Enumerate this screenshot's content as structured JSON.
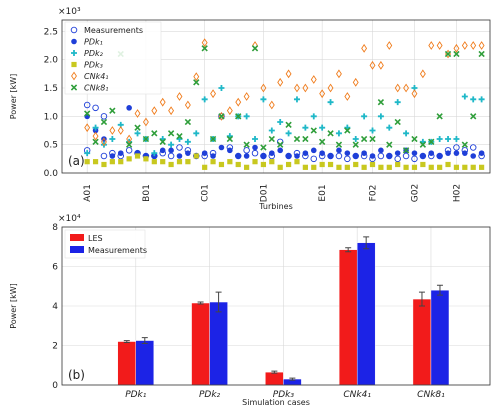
{
  "chart_data": [
    {
      "type": "scatter",
      "multiplier_label": "×10³",
      "panel_label": "(a)",
      "xlabel": "Turbines",
      "ylabel": "Power [kW]",
      "ylim": [
        0,
        2.7
      ],
      "yticks": [
        0.0,
        0.5,
        1.0,
        1.5,
        2.0,
        2.5
      ],
      "xlim": [
        0,
        51
      ],
      "xticks": [
        {
          "label": "A01",
          "x": 3
        },
        {
          "label": "B01",
          "x": 10
        },
        {
          "label": "C01",
          "x": 17
        },
        {
          "label": "D01",
          "x": 24
        },
        {
          "label": "E01",
          "x": 31
        },
        {
          "label": "F02",
          "x": 37
        },
        {
          "label": "G02",
          "x": 42
        },
        {
          "label": "H02",
          "x": 47
        }
      ],
      "grid": true,
      "legend_position": "top-left",
      "legend": [
        {
          "label": "Measurements",
          "marker": "circle-open"
        },
        {
          "label": "PDk₁",
          "marker": "circle"
        },
        {
          "label": "PDk₂",
          "marker": "plus"
        },
        {
          "label": "PDk₃",
          "marker": "square"
        },
        {
          "label": "CNk4₁",
          "marker": "diamond"
        },
        {
          "label": "CNk8₁",
          "marker": "x"
        }
      ],
      "series": [
        {
          "name": "Measurements",
          "color": "#1f3fd8",
          "x": [
            3,
            3,
            4,
            5,
            5,
            6,
            7,
            8,
            9,
            10,
            11,
            12,
            13,
            14,
            15,
            16,
            17,
            18,
            19,
            20,
            21,
            22,
            23,
            24,
            25,
            26,
            27,
            28,
            29,
            30,
            31,
            32,
            33,
            34,
            35,
            36,
            37,
            38,
            39,
            40,
            41,
            42,
            43,
            44,
            45,
            46,
            47,
            48,
            49,
            50
          ],
          "values": [
            1.2,
            0.4,
            1.15,
            1.0,
            0.3,
            0.35,
            0.3,
            0.4,
            0.35,
            0.3,
            0.3,
            0.35,
            0.3,
            0.45,
            0.4,
            0.3,
            0.3,
            0.35,
            1.0,
            0.45,
            0.3,
            0.4,
            0.35,
            0.3,
            0.3,
            0.55,
            0.3,
            0.35,
            0.3,
            0.25,
            0.3,
            0.3,
            0.3,
            0.25,
            0.3,
            0.3,
            0.25,
            0.3,
            0.3,
            0.25,
            0.3,
            0.25,
            0.3,
            0.3,
            0.3,
            0.4,
            0.45,
            0.4,
            0.45,
            0.3
          ]
        },
        {
          "name": "PDk₁",
          "color": "#1f3fd8",
          "x": [
            3,
            4,
            5,
            6,
            7,
            8,
            9,
            10,
            11,
            12,
            13,
            14,
            15,
            16,
            17,
            18,
            19,
            20,
            21,
            22,
            23,
            24,
            25,
            26,
            27,
            28,
            29,
            30,
            31,
            32,
            33,
            34,
            35,
            36,
            37,
            38,
            39,
            40,
            41,
            42,
            43,
            44,
            45,
            46,
            47,
            48,
            49,
            50
          ],
          "values": [
            1.0,
            0.75,
            0.6,
            0.3,
            0.35,
            1.15,
            0.35,
            0.3,
            0.3,
            0.4,
            0.4,
            0.3,
            0.35,
            0.3,
            0.35,
            0.3,
            0.45,
            0.4,
            0.3,
            0.3,
            0.45,
            0.3,
            0.35,
            0.4,
            0.3,
            0.3,
            0.35,
            0.4,
            0.35,
            0.3,
            0.4,
            0.35,
            0.3,
            0.35,
            0.3,
            0.4,
            0.3,
            0.35,
            0.4,
            0.35,
            0.3,
            0.35,
            0.3,
            0.35,
            0.35,
            0.35,
            0.3,
            0.35
          ]
        },
        {
          "name": "PDk₂",
          "color": "#1fb8c8",
          "x": [
            3,
            4,
            5,
            6,
            7,
            8,
            9,
            10,
            11,
            12,
            13,
            14,
            15,
            16,
            17,
            18,
            19,
            20,
            21,
            22,
            23,
            24,
            25,
            26,
            27,
            28,
            29,
            30,
            31,
            32,
            33,
            34,
            35,
            36,
            37,
            38,
            39,
            40,
            41,
            42,
            43,
            44,
            45,
            46,
            47,
            48,
            49,
            50
          ],
          "values": [
            0.35,
            0.8,
            0.5,
            0.6,
            0.85,
            0.55,
            0.7,
            0.6,
            0.35,
            0.6,
            0.5,
            0.6,
            0.55,
            0.7,
            1.3,
            0.6,
            1.5,
            0.65,
            1.0,
            1.0,
            0.6,
            1.3,
            0.75,
            0.9,
            0.7,
            1.3,
            0.8,
            1.0,
            0.8,
            1.25,
            0.7,
            0.8,
            0.6,
            1.0,
            0.75,
            1.0,
            0.8,
            1.25,
            0.7,
            1.5,
            0.55,
            0.55,
            0.6,
            0.6,
            0.6,
            1.35,
            1.3,
            1.3
          ]
        },
        {
          "name": "PDk₃",
          "color": "#c8c81f",
          "x": [
            3,
            4,
            5,
            6,
            7,
            8,
            9,
            10,
            11,
            12,
            13,
            14,
            15,
            16,
            17,
            18,
            19,
            20,
            21,
            22,
            23,
            24,
            25,
            26,
            27,
            28,
            29,
            30,
            31,
            32,
            33,
            34,
            35,
            36,
            37,
            38,
            39,
            40,
            41,
            42,
            43,
            44,
            45,
            46,
            47,
            48,
            49,
            50
          ],
          "values": [
            0.2,
            0.2,
            0.15,
            0.2,
            0.2,
            0.25,
            0.3,
            0.25,
            0.2,
            0.2,
            0.15,
            0.2,
            0.2,
            0.3,
            0.1,
            0.2,
            0.15,
            0.2,
            0.15,
            0.1,
            0.2,
            0.15,
            0.2,
            0.1,
            0.15,
            0.2,
            0.1,
            0.1,
            0.15,
            0.15,
            0.1,
            0.1,
            0.15,
            0.1,
            0.15,
            0.1,
            0.1,
            0.15,
            0.1,
            0.1,
            0.15,
            0.1,
            0.1,
            0.15,
            0.1,
            0.1,
            0.1,
            0.1
          ]
        },
        {
          "name": "CNk4₁",
          "color": "#f07c1c",
          "x": [
            3,
            4,
            5,
            6,
            7,
            8,
            9,
            10,
            11,
            12,
            13,
            14,
            15,
            16,
            17,
            18,
            19,
            20,
            21,
            22,
            23,
            24,
            25,
            26,
            27,
            28,
            29,
            30,
            31,
            32,
            33,
            34,
            35,
            36,
            37,
            38,
            39,
            40,
            41,
            42,
            43,
            44,
            45,
            46,
            47,
            48,
            49,
            50
          ],
          "values": [
            0.8,
            0.65,
            0.55,
            0.75,
            0.75,
            0.6,
            1.05,
            0.9,
            1.1,
            1.25,
            1.1,
            1.35,
            1.2,
            1.7,
            2.3,
            1.4,
            1.0,
            1.1,
            1.25,
            1.35,
            2.25,
            1.5,
            1.2,
            1.6,
            1.75,
            1.5,
            1.5,
            1.65,
            1.4,
            1.5,
            1.75,
            1.35,
            1.6,
            2.2,
            1.9,
            1.9,
            2.25,
            1.5,
            1.5,
            1.4,
            1.75,
            2.25,
            2.25,
            2.1,
            2.2,
            2.25,
            2.25,
            2.25
          ]
        },
        {
          "name": "CNk8₁",
          "color": "#2f9e3a",
          "x": [
            3,
            4,
            5,
            6,
            7,
            8,
            9,
            10,
            11,
            12,
            13,
            14,
            15,
            16,
            17,
            18,
            19,
            20,
            21,
            22,
            23,
            24,
            25,
            26,
            27,
            28,
            29,
            30,
            31,
            32,
            33,
            34,
            35,
            36,
            37,
            38,
            39,
            40,
            41,
            42,
            43,
            44,
            45,
            46,
            47,
            48,
            49,
            50
          ],
          "values": [
            1.05,
            0.55,
            0.9,
            1.1,
            2.1,
            0.5,
            0.8,
            0.6,
            0.7,
            0.55,
            0.7,
            0.65,
            0.9,
            1.6,
            2.2,
            0.6,
            1.0,
            0.6,
            1.0,
            0.5,
            2.2,
            0.45,
            0.6,
            0.5,
            0.85,
            0.6,
            0.6,
            0.75,
            0.55,
            0.7,
            0.5,
            0.75,
            0.5,
            0.6,
            0.6,
            1.25,
            0.5,
            0.9,
            0.4,
            0.6,
            0.5,
            0.55,
            1.0,
            2.1,
            2.1,
            0.5,
            1.0,
            2.1
          ]
        }
      ]
    },
    {
      "type": "bar",
      "multiplier_label": "×10⁴",
      "panel_label": "(b)",
      "xlabel": "Simulation cases",
      "ylabel": "Power [kW]",
      "ylim": [
        0,
        8
      ],
      "yticks": [
        0,
        2,
        4,
        6,
        8
      ],
      "categories": [
        "PDk₁",
        "PDk₂",
        "PDk₃",
        "CNk4₁",
        "CNk8₁"
      ],
      "grid": true,
      "legend_position": "top-left",
      "series": [
        {
          "name": "LES",
          "color": "#f21b1b",
          "values": [
            2.2,
            4.15,
            0.65,
            6.85,
            4.35
          ],
          "errors": [
            0.05,
            0.05,
            0.05,
            0.1,
            0.35
          ]
        },
        {
          "name": "Measurements",
          "color": "#1c23e6",
          "values": [
            2.25,
            4.2,
            0.3,
            7.2,
            4.8
          ],
          "errors": [
            0.15,
            0.5,
            0.05,
            0.3,
            0.25
          ]
        }
      ]
    }
  ]
}
